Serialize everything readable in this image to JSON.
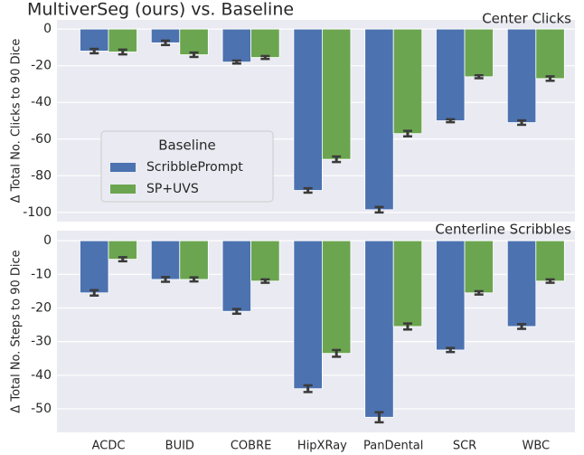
{
  "title": "MultiverSeg (ours) vs. Baseline",
  "chart_data": [
    {
      "type": "bar",
      "title": "Center Clicks",
      "ylabel": "Δ Total No. Clicks to 90 Dice",
      "ylim": [
        -105,
        5
      ],
      "yticks": [
        0,
        -20,
        -40,
        -60,
        -80,
        -100
      ],
      "grid": true,
      "legend": {
        "title": "Baseline",
        "loc": "center left"
      },
      "series": [
        {
          "name": "ScribblePrompt",
          "color": "#4c72b0",
          "values": [
            -12,
            -7.5,
            -18,
            -88,
            -98.5,
            -50,
            -51
          ],
          "errors": [
            1.2,
            1.2,
            0.8,
            1.2,
            1.5,
            0.8,
            1.2
          ]
        },
        {
          "name": "SP+UVS",
          "color": "#6ba550",
          "values": [
            -12.5,
            -14,
            -15.5,
            -71,
            -57,
            -26,
            -27
          ],
          "errors": [
            1.3,
            1.2,
            0.8,
            1.5,
            1.5,
            0.8,
            1.2
          ]
        }
      ]
    },
    {
      "type": "bar",
      "title": "Centerline Scribbles",
      "ylabel": "Δ Total No. Steps to 90 Dice",
      "categories": [
        "ACDC",
        "BUID",
        "COBRE",
        "HipXRay",
        "PanDental",
        "SCR",
        "WBC"
      ],
      "ylim": [
        -57,
        3
      ],
      "yticks": [
        0,
        -10,
        -20,
        -30,
        -40,
        -50
      ],
      "grid": true,
      "series": [
        {
          "color": "#4c72b0",
          "values": [
            -15.5,
            -11.5,
            -21,
            -44,
            -52.5,
            -32.5,
            -25.5
          ],
          "errors": [
            0.8,
            0.7,
            0.7,
            1,
            1.5,
            0.6,
            0.7
          ]
        },
        {
          "color": "#6ba550",
          "values": [
            -5.5,
            -11.5,
            -12,
            -33.5,
            -25.5,
            -15.5,
            -12
          ],
          "errors": [
            0.6,
            0.6,
            0.5,
            1,
            0.9,
            0.5,
            0.5
          ]
        }
      ]
    }
  ]
}
